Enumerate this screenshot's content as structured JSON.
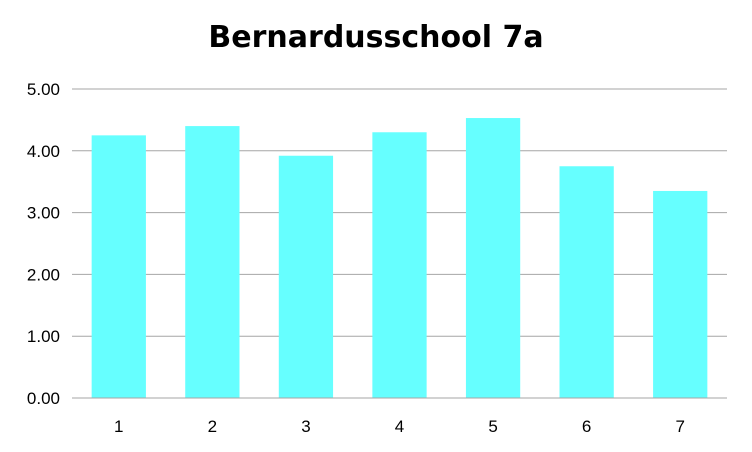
{
  "chart_data": {
    "type": "bar",
    "title": "Bernardusschool 7a",
    "categories": [
      "1",
      "2",
      "3",
      "4",
      "5",
      "6",
      "7"
    ],
    "values": [
      4.25,
      4.4,
      3.92,
      4.3,
      4.53,
      3.75,
      3.35
    ],
    "ylim": [
      0,
      5
    ],
    "yticks": [
      "0.00",
      "1.00",
      "2.00",
      "3.00",
      "4.00",
      "5.00"
    ],
    "xlabel": "",
    "ylabel": "",
    "grid": true,
    "legend": "none",
    "bar_color": "#66FFFF",
    "grid_color": "#A6A6A6"
  }
}
